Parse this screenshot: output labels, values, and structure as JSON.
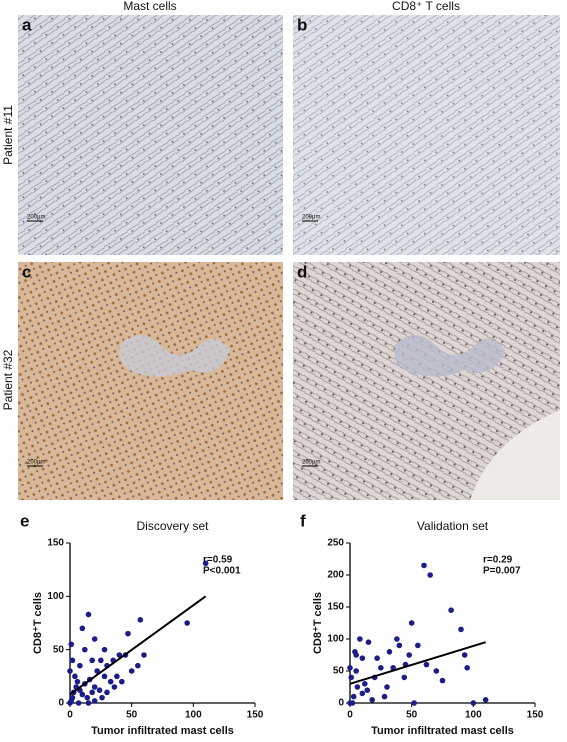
{
  "panels": {
    "column_titles": [
      "Mast cells",
      "CD8⁺ T cells"
    ],
    "row_labels": [
      "Patient #11",
      "Patient #32"
    ],
    "letters": [
      "a",
      "b",
      "c",
      "d",
      "e",
      "f"
    ],
    "scale_bar": "200μm"
  },
  "chart_data": [
    {
      "type": "scatter",
      "title": "Discovery set",
      "x_label": "Tumor infiltrated mast cells",
      "y_label": "CD8⁺T cells",
      "annotations": [
        "r=0.59",
        "P<0.001"
      ],
      "color": "#1c1c8a",
      "xlim": [
        0,
        150
      ],
      "ylim": [
        0,
        150
      ],
      "xticks": [
        0,
        50,
        100,
        150
      ],
      "yticks": [
        0,
        50,
        100,
        150
      ],
      "x": [
        110,
        95,
        57,
        47,
        45,
        40,
        35,
        30,
        25,
        20,
        15,
        10,
        12,
        18,
        22,
        28,
        33,
        38,
        5,
        3,
        2,
        1,
        0,
        4,
        6,
        8,
        10,
        12,
        14,
        16,
        18,
        20,
        24,
        26,
        30,
        2,
        0,
        8,
        50,
        55,
        42,
        36,
        60,
        28,
        7,
        15,
        20,
        1
      ],
      "y": [
        131,
        75,
        78,
        65,
        45,
        45,
        40,
        35,
        40,
        60,
        83,
        70,
        50,
        40,
        30,
        25,
        20,
        25,
        15,
        10,
        5,
        2,
        0,
        25,
        20,
        12,
        8,
        18,
        5,
        22,
        10,
        15,
        12,
        5,
        10,
        40,
        30,
        35,
        30,
        35,
        20,
        15,
        45,
        50,
        0,
        0,
        2,
        55
      ],
      "fit": {
        "x": [
          0,
          110
        ],
        "y": [
          8,
          100
        ]
      }
    },
    {
      "type": "scatter",
      "title": "Validation set",
      "x_label": "Tumor infiltrated mast cells",
      "y_label": "CD8⁺T cells",
      "annotations": [
        "r=0.29",
        "P=0.007"
      ],
      "color": "#1c1c8a",
      "xlim": [
        0,
        150
      ],
      "ylim": [
        0,
        250
      ],
      "xticks": [
        0,
        50,
        100,
        150
      ],
      "yticks": [
        0,
        50,
        100,
        150,
        200,
        250
      ],
      "x": [
        110,
        100,
        95,
        93,
        90,
        82,
        65,
        60,
        62,
        55,
        50,
        48,
        45,
        40,
        38,
        35,
        30,
        25,
        20,
        15,
        12,
        10,
        8,
        5,
        4,
        3,
        2,
        1,
        0,
        0,
        6,
        14,
        18,
        22,
        28,
        32,
        44,
        52,
        70,
        75,
        5,
        10
      ],
      "y": [
        5,
        0,
        55,
        75,
        115,
        145,
        200,
        215,
        60,
        90,
        125,
        75,
        60,
        90,
        100,
        55,
        25,
        55,
        40,
        95,
        30,
        70,
        100,
        75,
        80,
        10,
        0,
        40,
        0,
        55,
        25,
        20,
        5,
        70,
        10,
        80,
        40,
        0,
        50,
        35,
        50,
        15
      ],
      "fit": {
        "x": [
          0,
          110
        ],
        "y": [
          30,
          95
        ]
      }
    }
  ]
}
